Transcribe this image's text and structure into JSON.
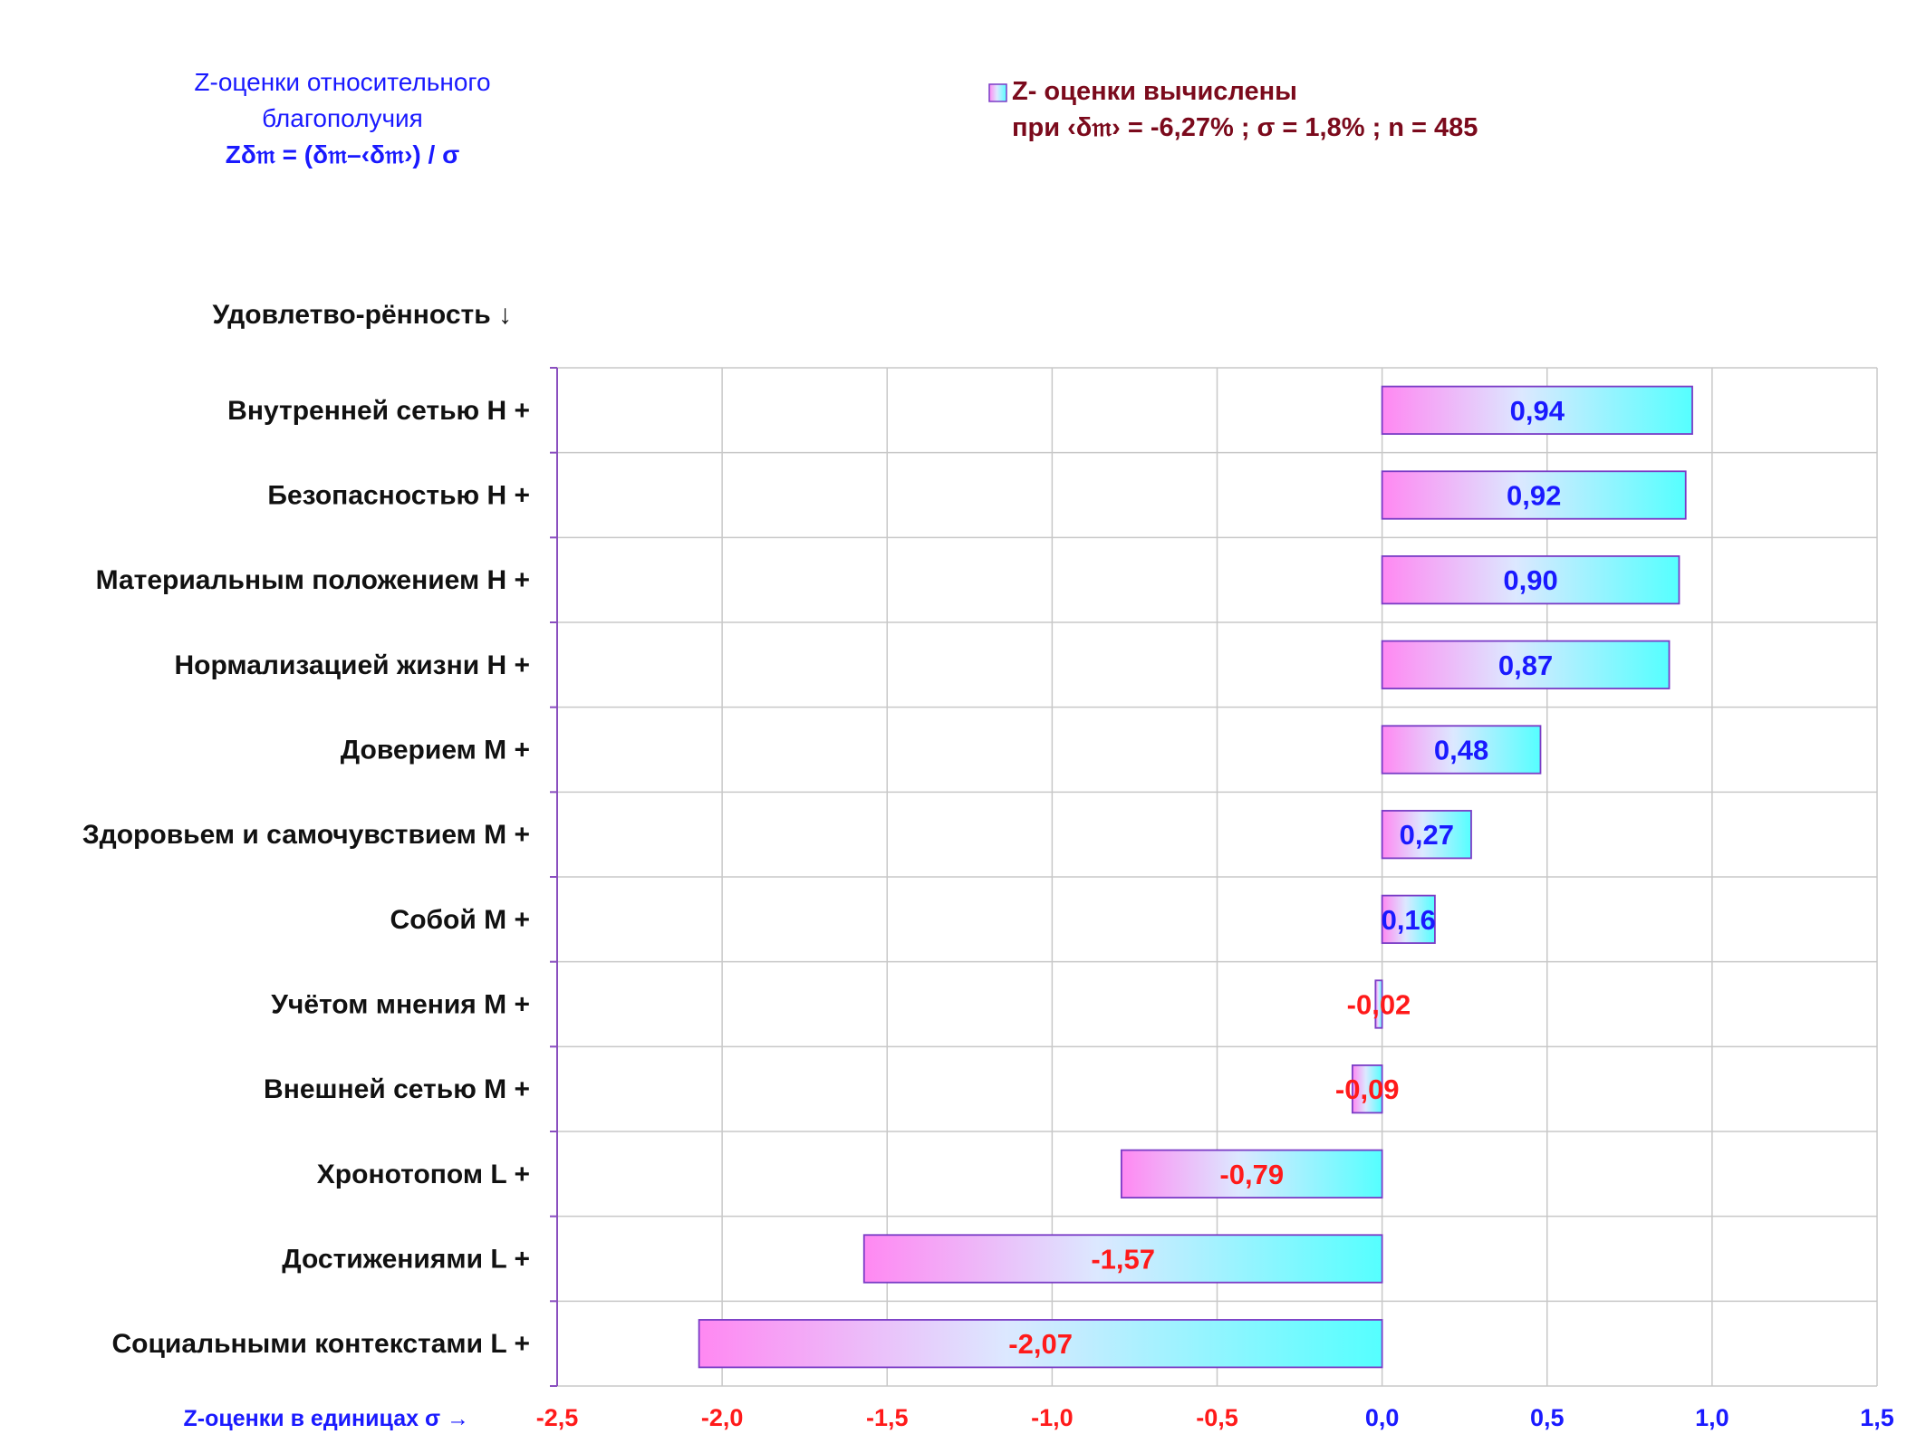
{
  "title": {
    "line1": "Z-оценки  относительного",
    "line2": "благополучия",
    "formula": "Zδ𝔪 = (δ𝔪–‹δ𝔪›)  / σ"
  },
  "legend": {
    "series_name": "Z- оценки вычислены",
    "params": "при ‹δ𝔪› = -6,27% ; σ = 1,8% ; n = 485"
  },
  "y_header": "Удовлетво-рённость ↓",
  "x_axis_label": "Z-оценки в единицах σ →",
  "colors": {
    "negative": "#ff1a1a",
    "positive": "#1a1aff",
    "bar_gradient_start": "#ff88f2",
    "bar_gradient_end": "#55ffff",
    "bar_border": "#7a3cc6",
    "grid": "#c8c8c8",
    "axis": "#8a4fbf"
  },
  "chart_data": {
    "type": "bar",
    "orientation": "horizontal",
    "categories": [
      "Внутренней сетью  Н +",
      "Безопасностью  Н +",
      "Материальным положением  Н +",
      "Нормализацией жизни  Н +",
      "Доверием  М +",
      "Здоровьем и самочувствием  М +",
      "Собой  М +",
      "Учётом мнения  М +",
      "Внешней сетью  М +",
      "Хронотопом  L +",
      "Достижениями  L +",
      "Социальными контекстами  L +"
    ],
    "series": [
      {
        "name": "Z- оценки вычислены",
        "values": [
          0.94,
          0.92,
          0.9,
          0.87,
          0.48,
          0.27,
          0.16,
          -0.02,
          -0.09,
          -0.79,
          -1.57,
          -2.07
        ],
        "labels": [
          "0,94",
          "0,92",
          "0,90",
          "0,87",
          "0,48",
          "0,27",
          "0,16",
          "-0,02",
          "-0,09",
          "-0,79",
          "-1,57",
          "-2,07"
        ]
      }
    ],
    "xlim": [
      -2.5,
      1.5
    ],
    "ticks": [
      -2.5,
      -2.0,
      -1.5,
      -1.0,
      -0.5,
      0.0,
      0.5,
      1.0,
      1.5
    ],
    "tick_labels": [
      "-2,5",
      "-2,0",
      "-1,5",
      "-1,0",
      "-0,5",
      "0,0",
      "0,5",
      "1,0",
      "1,5"
    ],
    "grid": true,
    "legend_position": "top-right"
  }
}
